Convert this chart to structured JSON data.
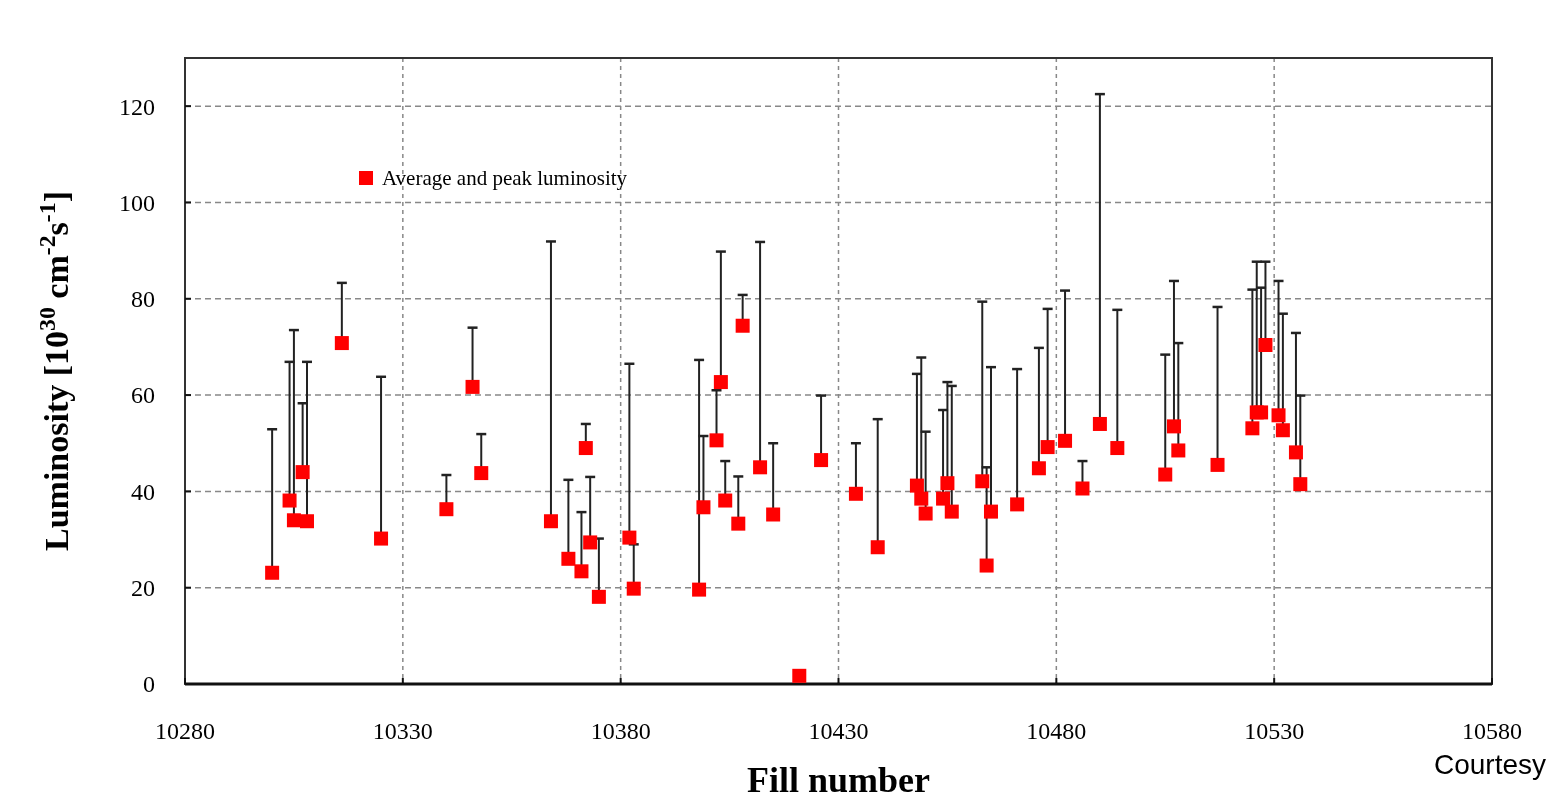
{
  "chart_data": {
    "type": "scatter",
    "xlabel": "Fill number",
    "ylabel": "Luminosity [10$^{30}$ cm$^{-2}$s$^{-1}$]",
    "x": [
      10300,
      10304,
      10305,
      10307,
      10308,
      10316,
      10325,
      10340,
      10346,
      10348,
      10364,
      10368,
      10371,
      10372,
      10373,
      10375,
      10382,
      10383,
      10398,
      10399,
      10402,
      10403,
      10404,
      10407,
      10408,
      10412,
      10415,
      10421,
      10426,
      10434,
      10439,
      10448,
      10449,
      10450,
      10454,
      10455,
      10456,
      10463,
      10464,
      10465,
      10471,
      10476,
      10478,
      10482,
      10486,
      10490,
      10494,
      10505,
      10507,
      10508,
      10517,
      10525,
      10526,
      10527,
      10528,
      10531,
      10532,
      10535,
      10536
    ],
    "series": [
      {
        "name": "Average and peak luminosity",
        "color": "#ff0000",
        "values": [
          23.1,
          38.1,
          34,
          44,
          33.8,
          70.8,
          30.2,
          36.3,
          61.7,
          43.8,
          33.8,
          26,
          23.4,
          49,
          29.4,
          18.1,
          30.4,
          19.8,
          19.6,
          36.7,
          50.6,
          62.7,
          38.1,
          33.3,
          74.4,
          45,
          35.2,
          1.7,
          46.5,
          39.5,
          28.4,
          41.2,
          38.5,
          35.4,
          38.5,
          41.7,
          35.8,
          42.1,
          24.6,
          35.8,
          37.3,
          44.8,
          49.2,
          50.5,
          40.6,
          54,
          49,
          43.5,
          53.5,
          48.5,
          45.5,
          53.1,
          56.4,
          56.4,
          70.4,
          55.8,
          52.7,
          48.1,
          41.5
        ],
        "errors": [
          [
            23.1,
            52.9
          ],
          [
            38.1,
            66.9
          ],
          [
            34,
            73.5
          ],
          [
            44,
            58.3
          ],
          [
            33.8,
            66.9
          ],
          [
            70.8,
            83.3
          ],
          [
            30.2,
            63.8
          ],
          [
            36.3,
            43.4
          ],
          [
            61.7,
            74
          ],
          [
            43.8,
            51.9
          ],
          [
            33.8,
            91.9
          ],
          [
            26,
            42.4
          ],
          [
            23.4,
            35.7
          ],
          [
            49,
            54
          ],
          [
            29.4,
            43
          ],
          [
            18.1,
            30.2
          ],
          [
            30.4,
            66.5
          ],
          [
            19.8,
            29
          ],
          [
            19.6,
            67.3
          ],
          [
            36.7,
            51.5
          ],
          [
            50.6,
            61
          ],
          [
            62.7,
            89.8
          ],
          [
            38.1,
            46.3
          ],
          [
            33.3,
            43.1
          ],
          [
            74.4,
            80.8
          ],
          [
            45,
            91.8
          ],
          [
            35.2,
            50
          ],
          null,
          [
            46.5,
            59.9
          ],
          [
            39.5,
            50
          ],
          [
            28.4,
            55
          ],
          [
            41.2,
            64.4
          ],
          [
            38.5,
            67.8
          ],
          [
            35.4,
            52.4
          ],
          [
            38.5,
            56.9
          ],
          [
            41.7,
            62.7
          ],
          [
            35.8,
            61.9
          ],
          [
            42.1,
            79.4
          ],
          [
            24.6,
            45
          ],
          [
            35.8,
            65.8
          ],
          [
            37.3,
            65.4
          ],
          [
            44.8,
            69.8
          ],
          [
            49.2,
            77.9
          ],
          [
            50.5,
            81.7
          ],
          [
            40.6,
            46.3
          ],
          [
            54,
            122.5
          ],
          [
            49,
            77.7
          ],
          [
            43.5,
            68.4
          ],
          [
            53.5,
            83.7
          ],
          [
            48.5,
            70.8
          ],
          [
            45.5,
            78.3
          ],
          [
            53.1,
            81.9
          ],
          [
            56.4,
            87.7
          ],
          [
            56.4,
            82.3
          ],
          [
            70.4,
            87.7
          ],
          [
            55.8,
            83.7
          ],
          [
            52.7,
            76.9
          ],
          [
            48.1,
            72.9
          ],
          [
            41.5,
            59.9
          ]
        ]
      }
    ],
    "xlim": [
      10280,
      10580
    ],
    "xticks": [
      10280,
      10330,
      10380,
      10430,
      10480,
      10530,
      10580
    ],
    "ylim": [
      0,
      130
    ],
    "yticks": [
      0,
      20,
      40,
      60,
      80,
      100,
      120
    ],
    "grid": true,
    "legend": "top left",
    "marker": "square",
    "annotations": [
      "Courtesy"
    ]
  }
}
